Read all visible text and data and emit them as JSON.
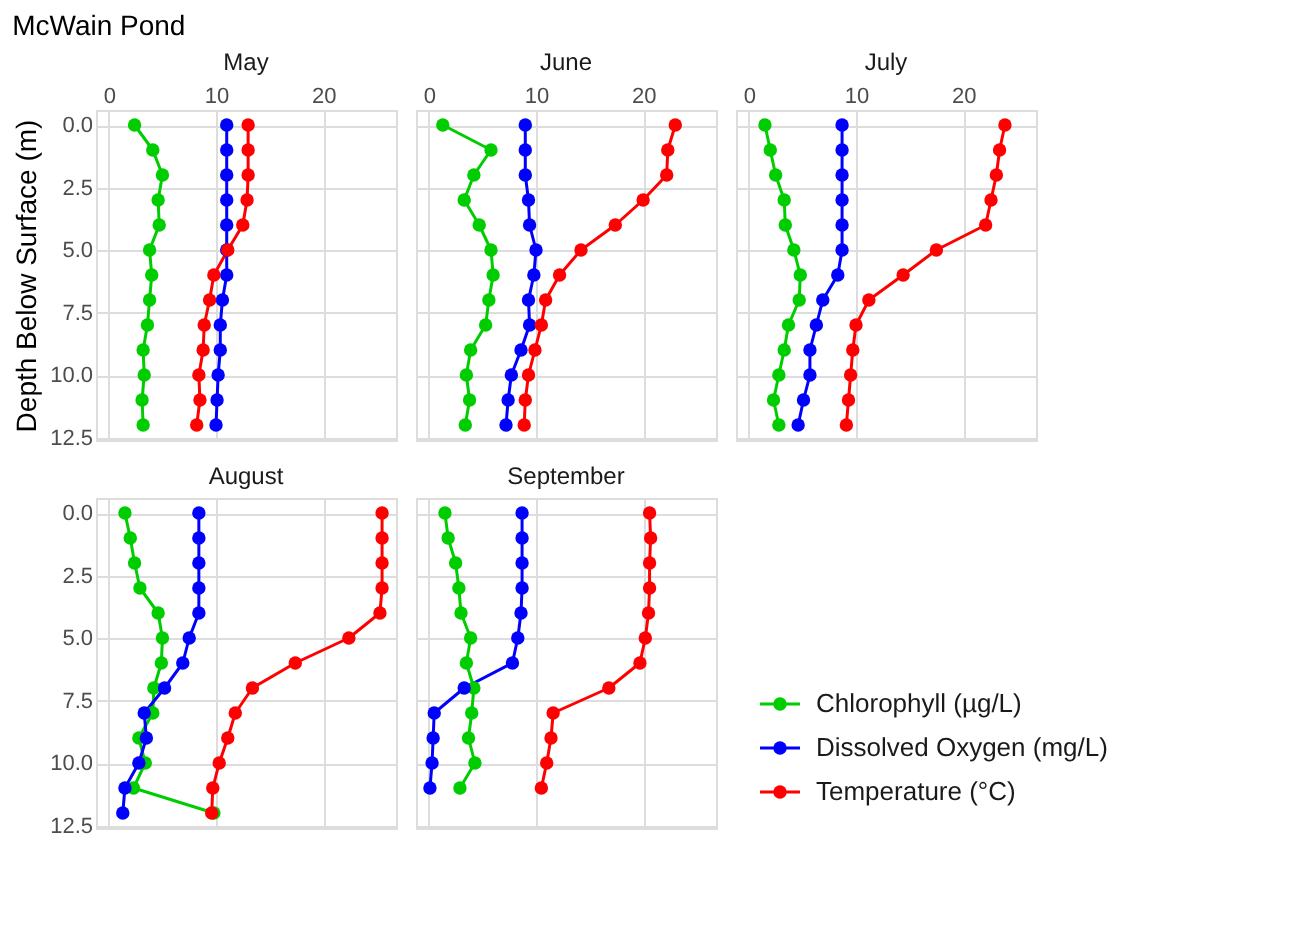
{
  "chart_data": [
    {
      "type": "line",
      "title": "May",
      "annotations": [
        "McWain Pond"
      ],
      "ylabel": "Depth Below Surface (m)",
      "xlim": [
        -1.2,
        26.8
      ],
      "xticks": [
        0,
        10,
        20
      ],
      "ylim": [
        12.6,
        -0.6
      ],
      "yticks": [
        {
          "value": 0,
          "label": "0.0"
        },
        {
          "value": 2.5,
          "label": "2.5"
        },
        {
          "value": 5,
          "label": "5.0"
        },
        {
          "value": 7.5,
          "label": "7.5"
        },
        {
          "value": 10,
          "label": "10.0"
        },
        {
          "value": 12.5,
          "label": "12.5"
        }
      ],
      "grid": true,
      "marker": "circle",
      "line_style": "solid",
      "series": [
        {
          "color": "#00cd00",
          "x": [
            2.4,
            4.1,
            5.0,
            4.6,
            4.7,
            3.8,
            4.0,
            3.8,
            3.6,
            3.2,
            3.3,
            3.1,
            3.2
          ],
          "values": [
            0,
            1,
            2,
            3,
            4,
            5,
            6,
            7,
            8,
            9,
            10,
            11,
            12
          ]
        },
        {
          "color": "#0000ff",
          "x": [
            11.0,
            11.0,
            11.0,
            11.0,
            11.0,
            11.0,
            11.0,
            10.6,
            10.4,
            10.4,
            10.2,
            10.1,
            10.0
          ],
          "values": [
            0,
            1,
            2,
            3,
            4,
            5,
            6,
            7,
            8,
            9,
            10,
            11,
            12
          ]
        },
        {
          "color": "#ff0000",
          "x": [
            13.0,
            13.0,
            13.0,
            12.9,
            12.5,
            11.1,
            9.8,
            9.4,
            8.9,
            8.8,
            8.4,
            8.5,
            8.2
          ],
          "values": [
            0,
            1,
            2,
            3,
            4,
            5,
            6,
            7,
            8,
            9,
            10,
            11,
            12
          ]
        }
      ]
    },
    {
      "type": "line",
      "title": "June",
      "xlim": [
        -1.2,
        26.8
      ],
      "xticks": [
        0,
        10,
        20
      ],
      "ylim": [
        12.6,
        -0.6
      ],
      "yticks": [
        0,
        2.5,
        5,
        7.5,
        10,
        12.5
      ],
      "tick_labels": "x",
      "grid": true,
      "marker": "circle",
      "line_style": "solid",
      "series": [
        {
          "color": "#00cd00",
          "x": [
            1.3,
            5.8,
            4.2,
            3.3,
            4.7,
            5.8,
            6.0,
            5.6,
            5.3,
            3.9,
            3.5,
            3.8,
            3.4
          ],
          "values": [
            0,
            1,
            2,
            3,
            4,
            5,
            6,
            7,
            8,
            9,
            10,
            11,
            12
          ]
        },
        {
          "color": "#0000ff",
          "x": [
            9.0,
            9.0,
            9.0,
            9.3,
            9.4,
            10.0,
            9.8,
            9.3,
            9.4,
            8.6,
            7.7,
            7.4,
            7.2
          ],
          "values": [
            0,
            1,
            2,
            3,
            4,
            5,
            6,
            7,
            8,
            9,
            10,
            11,
            12
          ]
        },
        {
          "color": "#ff0000",
          "x": [
            23.0,
            22.3,
            22.2,
            20.0,
            17.4,
            14.2,
            12.2,
            10.9,
            10.5,
            9.9,
            9.3,
            9.0,
            8.9
          ],
          "values": [
            0,
            1,
            2,
            3,
            4,
            5,
            6,
            7,
            8,
            9,
            10,
            11,
            12
          ]
        }
      ]
    },
    {
      "type": "line",
      "title": "July",
      "xlim": [
        -1.2,
        26.8
      ],
      "xticks": [
        0,
        10,
        20
      ],
      "ylim": [
        12.6,
        -0.6
      ],
      "yticks": [
        0,
        2.5,
        5,
        7.5,
        10,
        12.5
      ],
      "tick_labels": "x",
      "grid": true,
      "marker": "circle",
      "line_style": "solid",
      "series": [
        {
          "color": "#00cd00",
          "x": [
            1.5,
            2.0,
            2.5,
            3.3,
            3.4,
            4.2,
            4.8,
            4.7,
            3.7,
            3.3,
            2.8,
            2.3,
            2.8
          ],
          "values": [
            0,
            1,
            2,
            3,
            4,
            5,
            6,
            7,
            8,
            9,
            10,
            11,
            12
          ]
        },
        {
          "color": "#0000ff",
          "x": [
            8.7,
            8.7,
            8.7,
            8.7,
            8.7,
            8.7,
            8.3,
            6.9,
            6.3,
            5.7,
            5.7,
            5.1,
            4.6
          ],
          "values": [
            0,
            1,
            2,
            3,
            4,
            5,
            6,
            7,
            8,
            9,
            10,
            11,
            12
          ]
        },
        {
          "color": "#ff0000",
          "x": [
            23.9,
            23.4,
            23.1,
            22.6,
            22.1,
            17.5,
            14.4,
            11.2,
            10.0,
            9.7,
            9.5,
            9.3,
            9.1
          ],
          "values": [
            0,
            1,
            2,
            3,
            4,
            5,
            6,
            7,
            8,
            9,
            10,
            11,
            12
          ]
        }
      ]
    },
    {
      "type": "line",
      "title": "August",
      "xlim": [
        -1.2,
        26.8
      ],
      "xticks": [
        0,
        10,
        20
      ],
      "ylim": [
        12.6,
        -0.6
      ],
      "yticks": [
        {
          "value": 0,
          "label": "0.0"
        },
        {
          "value": 2.5,
          "label": "2.5"
        },
        {
          "value": 5,
          "label": "5.0"
        },
        {
          "value": 7.5,
          "label": "7.5"
        },
        {
          "value": 10,
          "label": "10.0"
        },
        {
          "value": 12.5,
          "label": "12.5"
        }
      ],
      "tick_labels": "y",
      "grid": true,
      "marker": "circle",
      "line_style": "solid",
      "series": [
        {
          "color": "#00cd00",
          "x": [
            1.5,
            2.0,
            2.4,
            2.9,
            4.6,
            5.0,
            4.9,
            4.2,
            4.1,
            2.8,
            3.4,
            2.3,
            9.8
          ],
          "values": [
            0,
            1,
            2,
            3,
            4,
            5,
            6,
            7,
            8,
            9,
            10,
            11,
            12
          ]
        },
        {
          "color": "#0000ff",
          "x": [
            8.4,
            8.4,
            8.4,
            8.4,
            8.4,
            7.5,
            6.9,
            5.2,
            3.3,
            3.5,
            2.8,
            1.5,
            1.3
          ],
          "values": [
            0,
            1,
            2,
            3,
            4,
            5,
            6,
            7,
            8,
            9,
            10,
            11,
            12
          ]
        },
        {
          "color": "#ff0000",
          "x": [
            25.5,
            25.5,
            25.5,
            25.5,
            25.3,
            22.4,
            17.4,
            13.4,
            11.8,
            11.1,
            10.3,
            9.7,
            9.6
          ],
          "values": [
            0,
            1,
            2,
            3,
            4,
            5,
            6,
            7,
            8,
            9,
            10,
            11,
            12
          ]
        }
      ]
    },
    {
      "type": "line",
      "title": "September",
      "xlim": [
        -1.2,
        26.8
      ],
      "xticks": [
        0,
        10,
        20
      ],
      "ylim": [
        12.6,
        -0.6
      ],
      "yticks": [
        0,
        2.5,
        5,
        7.5,
        10,
        12.5
      ],
      "tick_labels": false,
      "grid": true,
      "legend": "right",
      "marker": "circle",
      "line_style": "solid",
      "series": [
        {
          "name": "Chlorophyll (µg/L)",
          "color": "#00cd00",
          "x": [
            1.5,
            1.8,
            2.5,
            2.8,
            3.0,
            3.9,
            3.5,
            4.2,
            4.0,
            3.7,
            4.3,
            2.9
          ],
          "values": [
            0,
            1,
            2,
            3,
            4,
            5,
            6,
            7,
            8,
            9,
            10,
            11
          ]
        },
        {
          "name": "Dissolved Oxygen (mg/L)",
          "color": "#0000ff",
          "x": [
            8.7,
            8.7,
            8.7,
            8.7,
            8.6,
            8.3,
            7.8,
            3.3,
            0.5,
            0.4,
            0.3,
            0.1
          ],
          "values": [
            0,
            1,
            2,
            3,
            4,
            5,
            6,
            7,
            8,
            9,
            10,
            11
          ]
        },
        {
          "name": "Temperature (°C)",
          "color": "#ff0000",
          "x": [
            20.6,
            20.7,
            20.6,
            20.6,
            20.5,
            20.2,
            19.7,
            16.8,
            11.6,
            11.4,
            11.0,
            10.5
          ],
          "values": [
            0,
            1,
            2,
            3,
            4,
            5,
            6,
            7,
            8,
            9,
            10,
            11
          ]
        }
      ]
    }
  ]
}
